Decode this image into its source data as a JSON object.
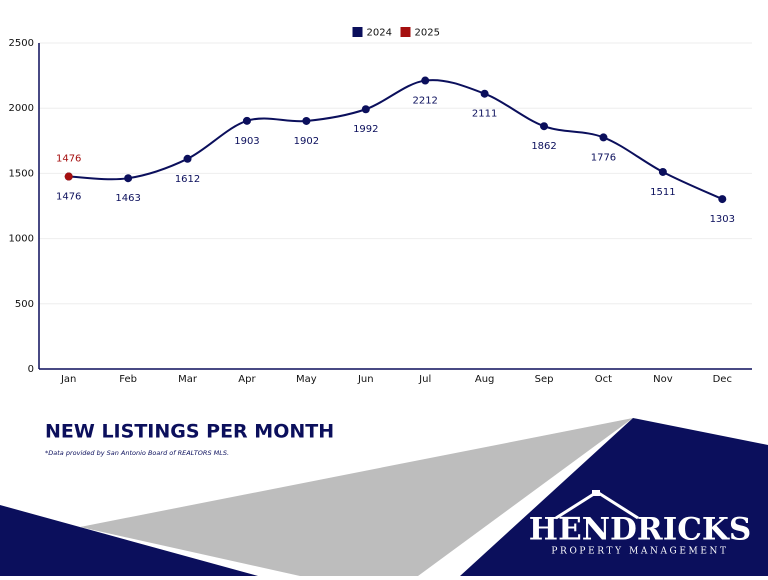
{
  "chart_data": {
    "type": "line",
    "title": "NEW LISTINGS PER MONTH",
    "note": "*Data provided by San Antonio Board of REALTORS MLS.",
    "categories": [
      "Jan",
      "Feb",
      "Mar",
      "Apr",
      "May",
      "Jun",
      "Jul",
      "Aug",
      "Sep",
      "Oct",
      "Nov",
      "Dec"
    ],
    "series": [
      {
        "name": "2024",
        "color": "#0b0f5c",
        "values": [
          1476,
          1463,
          1612,
          1903,
          1902,
          1992,
          2212,
          2111,
          1862,
          1776,
          1511,
          1303
        ]
      },
      {
        "name": "2025",
        "color": "#a50f0f",
        "values": [
          1476,
          null,
          null,
          null,
          null,
          null,
          null,
          null,
          null,
          null,
          null,
          null
        ]
      }
    ],
    "ylim": [
      0,
      2500
    ],
    "yticks": [
      0,
      500,
      1000,
      1500,
      2000,
      2500
    ],
    "grid": true,
    "legend": "top"
  },
  "logo": {
    "name": "HENDRICKS",
    "tagline": "PROPERTY MANAGEMENT"
  }
}
